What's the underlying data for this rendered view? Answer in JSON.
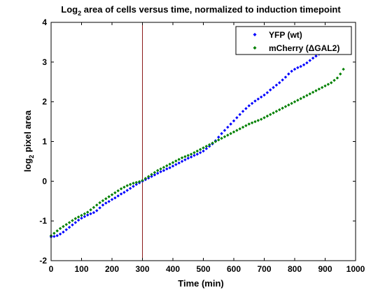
{
  "chart_data": {
    "type": "scatter",
    "title": {
      "prefix": "Log",
      "subscript": "2",
      "suffix": " area of cells versus time, normalized to induction timepoint"
    },
    "xlabel": "Time (min)",
    "ylabel": {
      "prefix": "log",
      "subscript": "2",
      "suffix": " pixel area"
    },
    "xlim": [
      0,
      1000
    ],
    "ylim": [
      -2,
      4
    ],
    "xticks": [
      0,
      100,
      200,
      300,
      400,
      500,
      600,
      700,
      800,
      900,
      1000
    ],
    "yticks": [
      -2,
      -1,
      0,
      1,
      2,
      3,
      4
    ],
    "grid": false,
    "legend_position": "top-right",
    "vline": {
      "x": 300,
      "color": "#8b1a1a"
    },
    "series": [
      {
        "name": "YFP (wt)",
        "color": "#0000ff",
        "x": [
          0,
          10,
          20,
          30,
          40,
          50,
          60,
          70,
          80,
          90,
          100,
          110,
          120,
          130,
          140,
          150,
          160,
          170,
          180,
          190,
          200,
          210,
          220,
          230,
          240,
          250,
          260,
          270,
          280,
          290,
          300,
          310,
          320,
          330,
          340,
          350,
          360,
          370,
          380,
          390,
          400,
          410,
          420,
          430,
          440,
          450,
          460,
          470,
          480,
          490,
          500,
          510,
          520,
          530,
          540,
          550,
          560,
          570,
          580,
          590,
          600,
          610,
          620,
          630,
          640,
          650,
          660,
          670,
          680,
          690,
          700,
          710,
          720,
          730,
          740,
          750,
          760,
          770,
          780,
          790,
          800,
          810,
          820,
          830,
          840,
          850,
          860,
          870,
          880
        ],
        "y": [
          -1.4,
          -1.39,
          -1.37,
          -1.33,
          -1.28,
          -1.22,
          -1.16,
          -1.1,
          -1.04,
          -0.98,
          -0.93,
          -0.89,
          -0.85,
          -0.82,
          -0.79,
          -0.74,
          -0.67,
          -0.6,
          -0.55,
          -0.51,
          -0.46,
          -0.42,
          -0.37,
          -0.32,
          -0.28,
          -0.23,
          -0.18,
          -0.13,
          -0.08,
          -0.04,
          0.0,
          0.04,
          0.08,
          0.12,
          0.16,
          0.2,
          0.24,
          0.27,
          0.31,
          0.34,
          0.38,
          0.42,
          0.46,
          0.5,
          0.54,
          0.58,
          0.61,
          0.65,
          0.68,
          0.72,
          0.76,
          0.82,
          0.88,
          0.94,
          1.02,
          1.11,
          1.2,
          1.28,
          1.36,
          1.44,
          1.52,
          1.6,
          1.68,
          1.76,
          1.83,
          1.9,
          1.96,
          2.02,
          2.07,
          2.12,
          2.17,
          2.23,
          2.3,
          2.36,
          2.42,
          2.48,
          2.55,
          2.62,
          2.7,
          2.77,
          2.82,
          2.86,
          2.89,
          2.93,
          2.98,
          3.04,
          3.1,
          3.15,
          3.2
        ]
      },
      {
        "name": "mCherry (ΔGAL2)",
        "color": "#008000",
        "x": [
          0,
          10,
          20,
          30,
          40,
          50,
          60,
          70,
          80,
          90,
          100,
          110,
          120,
          130,
          140,
          150,
          160,
          170,
          180,
          190,
          200,
          210,
          220,
          230,
          240,
          250,
          260,
          270,
          280,
          290,
          300,
          310,
          320,
          330,
          340,
          350,
          360,
          370,
          380,
          390,
          400,
          410,
          420,
          430,
          440,
          450,
          460,
          470,
          480,
          490,
          500,
          510,
          520,
          530,
          540,
          550,
          560,
          570,
          580,
          590,
          600,
          610,
          620,
          630,
          640,
          650,
          660,
          670,
          680,
          690,
          700,
          710,
          720,
          730,
          740,
          750,
          760,
          770,
          780,
          790,
          800,
          810,
          820,
          830,
          840,
          850,
          860,
          870,
          880,
          890,
          900,
          910,
          920,
          930,
          940,
          950,
          960
        ],
        "y": [
          -1.37,
          -1.31,
          -1.25,
          -1.19,
          -1.14,
          -1.09,
          -1.04,
          -0.99,
          -0.94,
          -0.9,
          -0.86,
          -0.82,
          -0.78,
          -0.72,
          -0.66,
          -0.6,
          -0.54,
          -0.49,
          -0.44,
          -0.39,
          -0.34,
          -0.29,
          -0.24,
          -0.19,
          -0.15,
          -0.11,
          -0.08,
          -0.05,
          -0.03,
          -0.01,
          0.02,
          0.07,
          0.12,
          0.17,
          0.22,
          0.27,
          0.31,
          0.35,
          0.39,
          0.43,
          0.47,
          0.51,
          0.55,
          0.59,
          0.62,
          0.65,
          0.68,
          0.72,
          0.76,
          0.8,
          0.84,
          0.88,
          0.92,
          0.96,
          1.0,
          1.04,
          1.08,
          1.12,
          1.16,
          1.2,
          1.24,
          1.28,
          1.32,
          1.36,
          1.4,
          1.44,
          1.47,
          1.5,
          1.53,
          1.56,
          1.6,
          1.64,
          1.68,
          1.72,
          1.76,
          1.8,
          1.84,
          1.88,
          1.92,
          1.96,
          2.0,
          2.04,
          2.08,
          2.12,
          2.16,
          2.2,
          2.24,
          2.28,
          2.32,
          2.36,
          2.4,
          2.44,
          2.48,
          2.54,
          2.6,
          2.7,
          2.82
        ]
      }
    ]
  }
}
